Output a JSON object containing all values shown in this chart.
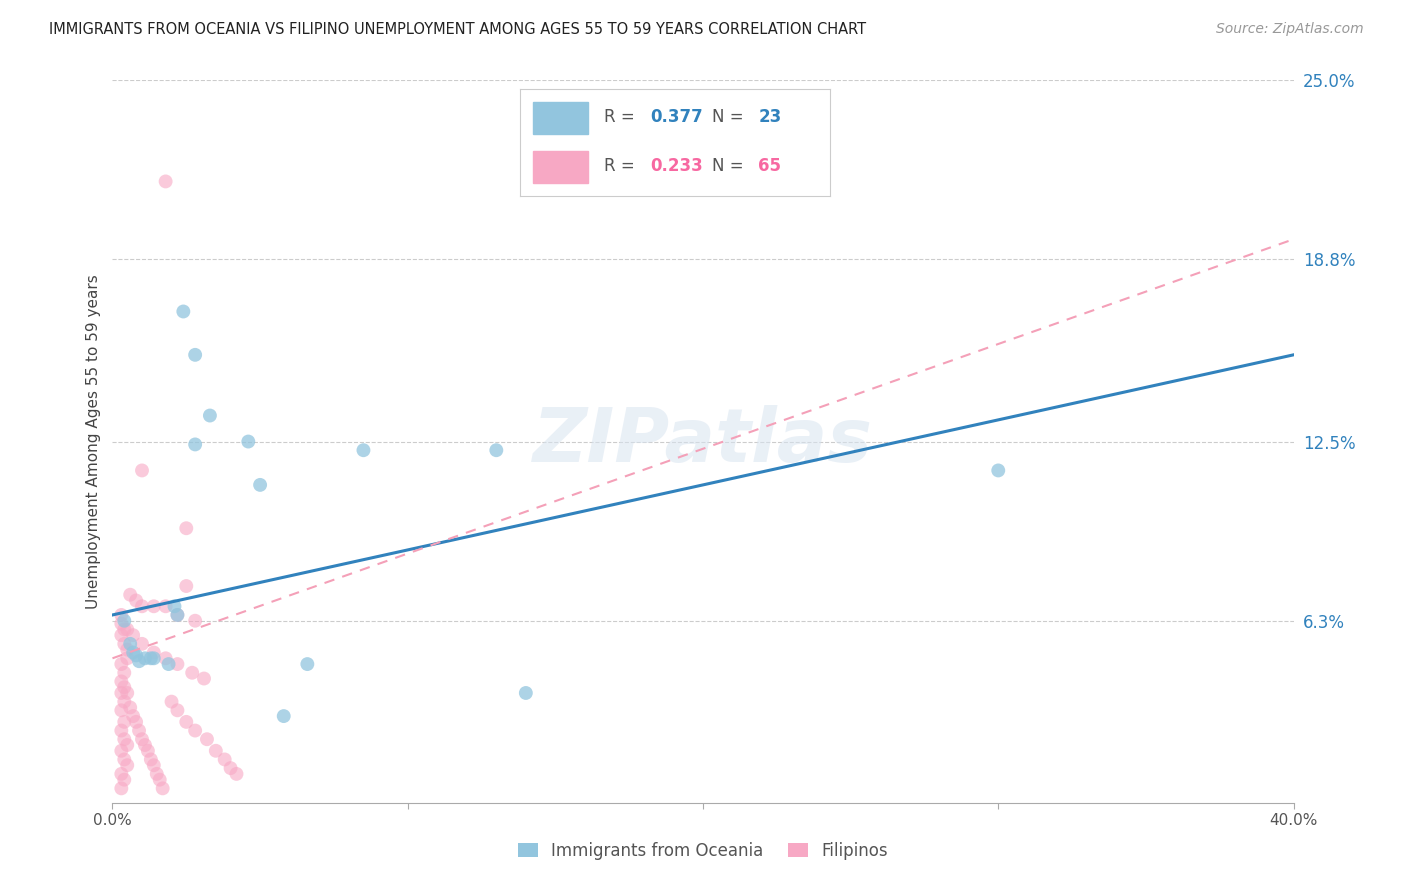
{
  "title": "IMMIGRANTS FROM OCEANIA VS FILIPINO UNEMPLOYMENT AMONG AGES 55 TO 59 YEARS CORRELATION CHART",
  "source": "Source: ZipAtlas.com",
  "ylabel": "Unemployment Among Ages 55 to 59 years",
  "xlim": [
    0.0,
    0.4
  ],
  "ylim": [
    0.0,
    0.25
  ],
  "y_ticks_right": [
    0.063,
    0.125,
    0.188,
    0.25
  ],
  "y_tick_labels_right": [
    "6.3%",
    "12.5%",
    "18.8%",
    "25.0%"
  ],
  "watermark": "ZIPatlas",
  "background_color": "#ffffff",
  "grid_color": "#cccccc",
  "oceania_color": "#92c5de",
  "filipino_color": "#f7a8c4",
  "blue_line_color": "#3182bd",
  "pink_line_color": "#f4a0b8",
  "blue_line": [
    0.0,
    0.065,
    0.4,
    0.155
  ],
  "pink_line": [
    0.0,
    0.05,
    0.4,
    0.195
  ],
  "oceania_points": [
    [
      0.024,
      0.17
    ],
    [
      0.028,
      0.155
    ],
    [
      0.033,
      0.134
    ],
    [
      0.028,
      0.124
    ],
    [
      0.046,
      0.125
    ],
    [
      0.05,
      0.11
    ],
    [
      0.085,
      0.122
    ],
    [
      0.13,
      0.122
    ],
    [
      0.3,
      0.115
    ],
    [
      0.004,
      0.063
    ],
    [
      0.006,
      0.055
    ],
    [
      0.007,
      0.052
    ],
    [
      0.008,
      0.051
    ],
    [
      0.009,
      0.049
    ],
    [
      0.011,
      0.05
    ],
    [
      0.013,
      0.05
    ],
    [
      0.014,
      0.05
    ],
    [
      0.019,
      0.048
    ],
    [
      0.021,
      0.068
    ],
    [
      0.022,
      0.065
    ],
    [
      0.066,
      0.048
    ],
    [
      0.14,
      0.038
    ],
    [
      0.058,
      0.03
    ]
  ],
  "filipino_points": [
    [
      0.018,
      0.215
    ],
    [
      0.01,
      0.115
    ],
    [
      0.025,
      0.095
    ],
    [
      0.025,
      0.075
    ],
    [
      0.006,
      0.072
    ],
    [
      0.008,
      0.07
    ],
    [
      0.01,
      0.068
    ],
    [
      0.014,
      0.068
    ],
    [
      0.018,
      0.068
    ],
    [
      0.022,
      0.065
    ],
    [
      0.028,
      0.063
    ],
    [
      0.005,
      0.06
    ],
    [
      0.007,
      0.058
    ],
    [
      0.01,
      0.055
    ],
    [
      0.014,
      0.052
    ],
    [
      0.018,
      0.05
    ],
    [
      0.022,
      0.048
    ],
    [
      0.027,
      0.045
    ],
    [
      0.031,
      0.043
    ],
    [
      0.003,
      0.065
    ],
    [
      0.003,
      0.062
    ],
    [
      0.004,
      0.06
    ],
    [
      0.003,
      0.058
    ],
    [
      0.004,
      0.055
    ],
    [
      0.005,
      0.053
    ],
    [
      0.005,
      0.05
    ],
    [
      0.003,
      0.048
    ],
    [
      0.004,
      0.045
    ],
    [
      0.003,
      0.042
    ],
    [
      0.004,
      0.04
    ],
    [
      0.003,
      0.038
    ],
    [
      0.004,
      0.035
    ],
    [
      0.003,
      0.032
    ],
    [
      0.004,
      0.028
    ],
    [
      0.003,
      0.025
    ],
    [
      0.004,
      0.022
    ],
    [
      0.005,
      0.02
    ],
    [
      0.003,
      0.018
    ],
    [
      0.004,
      0.015
    ],
    [
      0.005,
      0.013
    ],
    [
      0.003,
      0.01
    ],
    [
      0.004,
      0.008
    ],
    [
      0.003,
      0.005
    ],
    [
      0.005,
      0.038
    ],
    [
      0.006,
      0.033
    ],
    [
      0.007,
      0.03
    ],
    [
      0.008,
      0.028
    ],
    [
      0.009,
      0.025
    ],
    [
      0.01,
      0.022
    ],
    [
      0.011,
      0.02
    ],
    [
      0.012,
      0.018
    ],
    [
      0.013,
      0.015
    ],
    [
      0.014,
      0.013
    ],
    [
      0.015,
      0.01
    ],
    [
      0.016,
      0.008
    ],
    [
      0.017,
      0.005
    ],
    [
      0.02,
      0.035
    ],
    [
      0.022,
      0.032
    ],
    [
      0.025,
      0.028
    ],
    [
      0.028,
      0.025
    ],
    [
      0.032,
      0.022
    ],
    [
      0.035,
      0.018
    ],
    [
      0.038,
      0.015
    ],
    [
      0.04,
      0.012
    ],
    [
      0.042,
      0.01
    ]
  ]
}
